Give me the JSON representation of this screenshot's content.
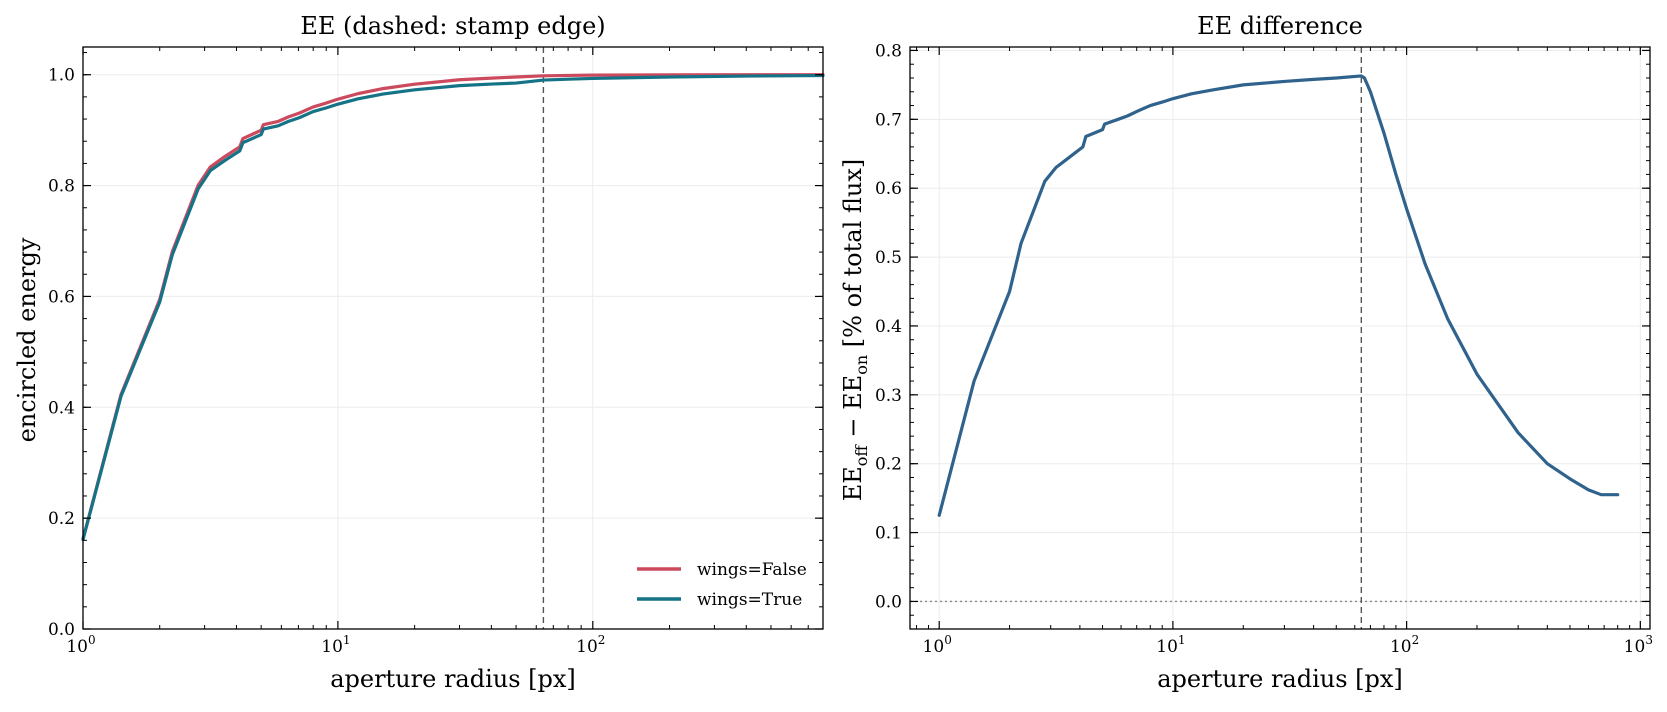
{
  "colors": {
    "wings_false": "#cc4a5e",
    "wings_true": "#157387",
    "difference": "#2f628c",
    "reference_line": "#555555",
    "grid": "#ececec"
  },
  "chart_data": [
    {
      "type": "line",
      "title": "EE (dashed: stamp edge)",
      "xlabel": "aperture radius [px]",
      "ylabel": "encircled energy",
      "xscale": "log",
      "xlim": [
        1,
        800
      ],
      "ylim": [
        0,
        1.05
      ],
      "x_ticks": [
        {
          "value": 1,
          "label": "10",
          "exp": "0"
        },
        {
          "value": 10,
          "label": "10",
          "exp": "1"
        },
        {
          "value": 100,
          "label": "10",
          "exp": "2"
        }
      ],
      "y_ticks": [
        {
          "value": 0,
          "label": "0.0"
        },
        {
          "value": 0.2,
          "label": "0.2"
        },
        {
          "value": 0.4,
          "label": "0.4"
        },
        {
          "value": 0.6,
          "label": "0.6"
        },
        {
          "value": 0.8,
          "label": "0.8"
        },
        {
          "value": 1.0,
          "label": "1.0"
        }
      ],
      "vline_x": 64,
      "grid": true,
      "legend": {
        "position": "lower right"
      },
      "series": [
        {
          "name": "wings=False",
          "color_key": "wings_false",
          "x": [
            1,
            1.41,
            2,
            2.24,
            2.83,
            3.16,
            3.61,
            4.12,
            4.24,
            5,
            5.1,
            5.83,
            6.4,
            7.07,
            8,
            9,
            10,
            12,
            15,
            20,
            30,
            40,
            50,
            64,
            80,
            100,
            200,
            400,
            800
          ],
          "y": [
            0.1625,
            0.4232,
            0.5945,
            0.6806,
            0.8006,
            0.8337,
            0.8527,
            0.8698,
            0.8848,
            0.8998,
            0.9098,
            0.9158,
            0.9239,
            0.9309,
            0.9419,
            0.9489,
            0.9559,
            0.9659,
            0.9749,
            0.9829,
            0.9909,
            0.9939,
            0.9959,
            0.998,
            0.9987,
            0.9993,
            0.9998,
            1.0,
            1.0
          ]
        },
        {
          "name": "wings=True",
          "color_key": "wings_true",
          "x": [
            1,
            1.41,
            2,
            2.24,
            2.83,
            3.16,
            3.61,
            4.12,
            4.24,
            5,
            5.1,
            5.83,
            6.4,
            7.07,
            8,
            9,
            10,
            12,
            15,
            20,
            30,
            40,
            50,
            64,
            80,
            100,
            200,
            400,
            800
          ],
          "y": [
            0.1613,
            0.42,
            0.59,
            0.675,
            0.794,
            0.827,
            0.8456,
            0.8626,
            0.8774,
            0.892,
            0.9019,
            0.9078,
            0.9158,
            0.9226,
            0.9335,
            0.9402,
            0.9469,
            0.9565,
            0.9651,
            0.9728,
            0.9803,
            0.9831,
            0.9849,
            0.9904,
            0.9919,
            0.9933,
            0.9959,
            0.9976,
            0.9985
          ]
        }
      ]
    },
    {
      "type": "line",
      "title": "EE difference",
      "xlabel": "aperture radius [px]",
      "ylabel_parts": {
        "pre": "EE",
        "sub1": "off",
        "mid": " − EE",
        "sub2": "on",
        "post": "  [% of total flux]"
      },
      "xscale": "log",
      "xlim": [
        0.75,
        1100
      ],
      "ylim": [
        -0.04,
        0.805
      ],
      "x_ticks": [
        {
          "value": 1,
          "label": "10",
          "exp": "0"
        },
        {
          "value": 10,
          "label": "10",
          "exp": "1"
        },
        {
          "value": 100,
          "label": "10",
          "exp": "2"
        },
        {
          "value": 1000,
          "label": "10",
          "exp": "3"
        }
      ],
      "y_ticks": [
        {
          "value": 0.0,
          "label": "0.0"
        },
        {
          "value": 0.1,
          "label": "0.1"
        },
        {
          "value": 0.2,
          "label": "0.2"
        },
        {
          "value": 0.3,
          "label": "0.3"
        },
        {
          "value": 0.4,
          "label": "0.4"
        },
        {
          "value": 0.5,
          "label": "0.5"
        },
        {
          "value": 0.6,
          "label": "0.6"
        },
        {
          "value": 0.7,
          "label": "0.7"
        },
        {
          "value": 0.8,
          "label": "0.8"
        }
      ],
      "vline_x": 64,
      "hline_y": 0,
      "grid": true,
      "series": [
        {
          "name": "",
          "color_key": "difference",
          "x": [
            1,
            1.41,
            2,
            2.24,
            2.83,
            3.16,
            3.61,
            4.12,
            4.24,
            5,
            5.1,
            5.83,
            6.4,
            7.07,
            8,
            9,
            10,
            12,
            15,
            20,
            30,
            40,
            50,
            64,
            66,
            70,
            80,
            90,
            100,
            120,
            150,
            200,
            300,
            400,
            500,
            600,
            680,
            800
          ],
          "y": [
            0.125,
            0.32,
            0.45,
            0.52,
            0.61,
            0.63,
            0.645,
            0.66,
            0.675,
            0.685,
            0.693,
            0.7,
            0.705,
            0.712,
            0.72,
            0.725,
            0.73,
            0.737,
            0.743,
            0.75,
            0.755,
            0.758,
            0.76,
            0.763,
            0.76,
            0.74,
            0.68,
            0.62,
            0.57,
            0.49,
            0.41,
            0.33,
            0.245,
            0.2,
            0.178,
            0.162,
            0.155,
            0.155
          ]
        }
      ]
    }
  ]
}
